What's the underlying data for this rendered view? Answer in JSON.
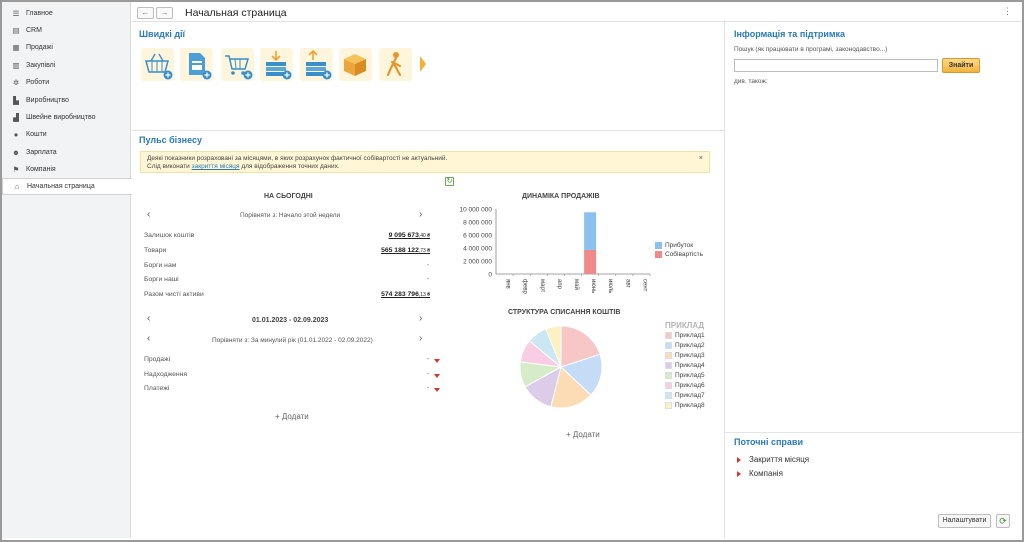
{
  "sidebar": {
    "items": [
      {
        "label": "Главное",
        "icon": "menu-lines-icon"
      },
      {
        "label": "CRM",
        "icon": "crm-icon"
      },
      {
        "label": "Продажі",
        "icon": "sales-icon"
      },
      {
        "label": "Закупівлі",
        "icon": "purchases-icon"
      },
      {
        "label": "Роботи",
        "icon": "tools-icon"
      },
      {
        "label": "Виробництво",
        "icon": "factory-icon"
      },
      {
        "label": "Швейне виробництво",
        "icon": "sewing-icon"
      },
      {
        "label": "Кошти",
        "icon": "money-icon"
      },
      {
        "label": "Зарплата",
        "icon": "people-icon"
      },
      {
        "label": "Компанія",
        "icon": "flag-icon"
      },
      {
        "label": "Начальная страница",
        "icon": "home-icon"
      }
    ]
  },
  "header": {
    "back": "←",
    "forward": "→",
    "title": "Начальная страница",
    "more": "⋮"
  },
  "quick_actions": {
    "title": "Швидкі дії",
    "icons": [
      "basket-add-icon",
      "document-add-icon",
      "cart-add-icon",
      "stack-in-add-icon",
      "stack-out-add-icon",
      "box-icon",
      "walker-icon"
    ]
  },
  "pulse": {
    "title": "Пульс бізнесу",
    "warning_line1": "Деякі показники розраховані за місяцями, в яких розрахунок фактичної собівартості не актуальний.",
    "warning_pre": "Слід виконати ",
    "warning_link": "закриття місяця",
    "warning_post": " для відображення точних даних.",
    "warning_close": "×",
    "today": {
      "title": "НА СЬОГОДНІ",
      "compare": "Порівняти з: Начало этой недели",
      "rows": [
        {
          "label": "Залишок коштів",
          "value": "9 095 673",
          "cents": ",40 ₴"
        },
        {
          "label": "Товари",
          "value": "565 188 122",
          "cents": ",73 ₴"
        },
        {
          "label": "Борги нам",
          "value": "-"
        },
        {
          "label": "Борги наші",
          "value": "-"
        },
        {
          "label": "Разом чисті активи",
          "value": "574 283 796",
          "cents": ",13 ₴"
        }
      ]
    },
    "period": {
      "range": "01.01.2023 - 02.09.2023",
      "compare": "Порівняти з: За минулий рік (01.01.2022 - 02.09.2022)",
      "rows": [
        {
          "label": "Продажі",
          "value": "-"
        },
        {
          "label": "Надходження",
          "value": "-"
        },
        {
          "label": "Платежі",
          "value": "-"
        }
      ]
    },
    "add_left": "+ Додати",
    "add_right": "+ Додати"
  },
  "chart_data": [
    {
      "type": "bar",
      "title": "ДИНАМІКА ПРОДАЖІВ",
      "categories": [
        "янв",
        "февр",
        "март",
        "апр",
        "май",
        "июнь",
        "июль",
        "авг",
        "сент"
      ],
      "series": [
        {
          "name": "Прибуток",
          "values": [
            0,
            0,
            0,
            0,
            0,
            5800000,
            0,
            0,
            0
          ],
          "color": "#8cc0ee"
        },
        {
          "name": "Собівартість",
          "values": [
            0,
            0,
            0,
            0,
            0,
            3700000,
            0,
            0,
            0
          ],
          "color": "#f08a8a"
        }
      ],
      "yticks": [
        "10 000 000",
        "8 000 000",
        "6 000 000",
        "4 000 000",
        "2 000 000",
        "0"
      ],
      "ylim": [
        0,
        10000000
      ],
      "stacked": true,
      "legend": "right"
    },
    {
      "type": "pie",
      "title": "СТРУКТУРА СПИСАННЯ КОШТІВ",
      "legend_title": "ПРИКЛАД",
      "labels": [
        "Приклад1",
        "Приклад2",
        "Приклад3",
        "Приклад4",
        "Приклад5",
        "Приклад6",
        "Приклад7",
        "Приклад8"
      ],
      "values": [
        20,
        17,
        17,
        13,
        10,
        9,
        8,
        6
      ],
      "colors": [
        "#f7c6c6",
        "#c4dcf5",
        "#fcdcb4",
        "#dccbe9",
        "#d6ecc9",
        "#f9cde3",
        "#cbe7f3",
        "#fbf1c2"
      ],
      "legend": "right"
    }
  ],
  "info": {
    "title": "Інформація та підтримка",
    "search_label": "Пошук (як працювати в програмі, законодавство...)",
    "search_value": "",
    "find": "Знайти",
    "see_also": "див. також:"
  },
  "tasks": {
    "title": "Поточні справи",
    "items": [
      "Закриття місяця",
      "Компанія"
    ]
  },
  "footer": {
    "setup": "Налаштувати",
    "refresh": "⟳"
  }
}
